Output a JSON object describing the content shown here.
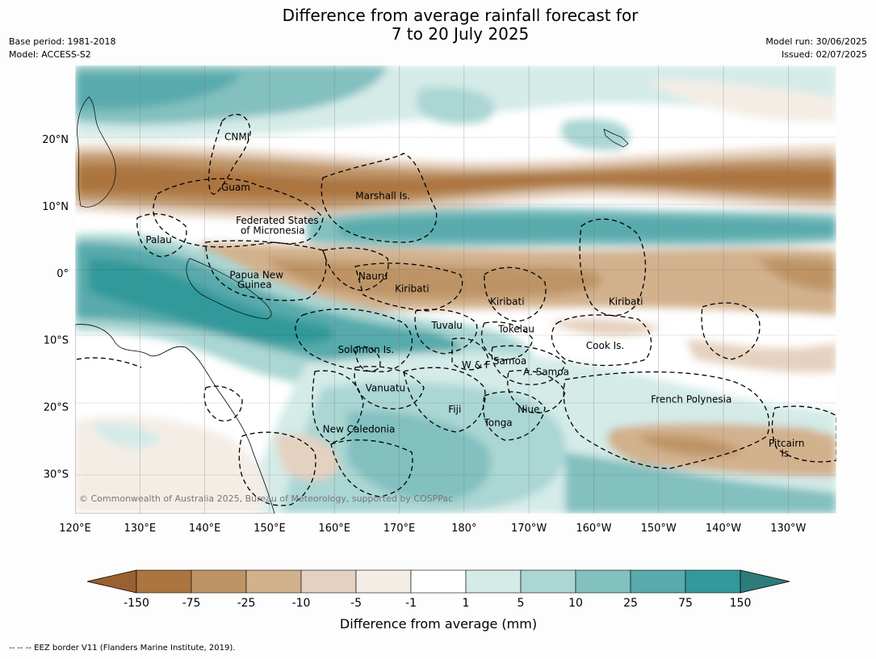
{
  "title_line1": "Difference from average rainfall forecast for",
  "title_line2": "7 to 20 July 2025",
  "base_period": "Base period: 1981-2018",
  "model": "Model: ACCESS-S2",
  "model_run": "Model run: 30/06/2025",
  "issued": "Issued: 02/07/2025",
  "copyright": "© Commonwealth of Australia 2025, Bureau of Meteorology, supported by COSPPac",
  "footer_note": "--  --  -- EEZ border V11 (Flanders Marine Institute, 2019).",
  "lat_labels": [
    "20°N",
    "10°N",
    "0°",
    "10°S",
    "20°S",
    "30°S"
  ],
  "lon_labels": [
    "120°E",
    "130°E",
    "140°E",
    "150°E",
    "160°E",
    "170°E",
    "180°",
    "170°W",
    "160°W",
    "150°W",
    "140°W",
    "130°W"
  ],
  "places": [
    {
      "label": "CNMI",
      "lon": 145.0,
      "lat": 20.3
    },
    {
      "label": "Guam",
      "lon": 144.8,
      "lat": 12.8
    },
    {
      "label": "Marshall Is.",
      "lon": 167.5,
      "lat": 11.5
    },
    {
      "label": "Federated States",
      "lon": 151.2,
      "lat": 7.8
    },
    {
      "label": "of Micronesia",
      "lon": 150.5,
      "lat": 6.3
    },
    {
      "label": "Palau",
      "lon": 132.9,
      "lat": 4.9
    },
    {
      "label": "Papua New",
      "lon": 148.0,
      "lat": -0.3
    },
    {
      "label": "Guinea",
      "lon": 147.7,
      "lat": -1.8
    },
    {
      "label": "Nauru",
      "lon": 166.0,
      "lat": -0.5
    },
    {
      "label": "Kiribati",
      "lon": 172.0,
      "lat": -2.4
    },
    {
      "label": "Kiribati",
      "lon": -173.3,
      "lat": -4.3
    },
    {
      "label": "Kiribati",
      "lon": -155.0,
      "lat": -4.3
    },
    {
      "label": "Tuvalu",
      "lon": 177.4,
      "lat": -7.9
    },
    {
      "label": "Tokelau",
      "lon": -171.9,
      "lat": -8.4
    },
    {
      "label": "Cook Is.",
      "lon": -158.2,
      "lat": -10.9
    },
    {
      "label": "Solomon Is.",
      "lon": 164.9,
      "lat": -11.5
    },
    {
      "label": "Samoa",
      "lon": -172.9,
      "lat": -13.2
    },
    {
      "label": "W & F",
      "lon": -178.1,
      "lat": -13.8
    },
    {
      "label": "A. Samoa",
      "lon": -167.3,
      "lat": -14.8
    },
    {
      "label": "Vanuatu",
      "lon": 167.9,
      "lat": -17.2
    },
    {
      "label": "Fiji",
      "lon": 178.6,
      "lat": -20.4
    },
    {
      "label": "Niue",
      "lon": -170.0,
      "lat": -20.4
    },
    {
      "label": "French Polynesia",
      "lon": -144.9,
      "lat": -18.9
    },
    {
      "label": "Tonga",
      "lon": -174.7,
      "lat": -22.4
    },
    {
      "label": "New Caledonia",
      "lon": 163.8,
      "lat": -23.4
    },
    {
      "label": "Pitcairn",
      "lon": -130.2,
      "lat": -25.5
    },
    {
      "label": "Is.",
      "lon": -130.2,
      "lat": -27.0
    }
  ],
  "colorbar": {
    "title": "Difference from average (mm)",
    "labels": [
      "-150",
      "-75",
      "-25",
      "-10",
      "-5",
      "-1",
      "1",
      "5",
      "10",
      "25",
      "75",
      "150"
    ],
    "colors": [
      "#9a6130",
      "#ac7440",
      "#be9466",
      "#d2b18d",
      "#e5d1bf",
      "#f4ede6",
      "#ffffff",
      "#d4ebe8",
      "#aad6d3",
      "#83c0c0",
      "#59aaac",
      "#33999a",
      "#2e7b7c"
    ]
  },
  "map_extent": {
    "lon_min": 120,
    "lon_max": 237.5,
    "lat_min": -36,
    "lat_max": 31
  }
}
